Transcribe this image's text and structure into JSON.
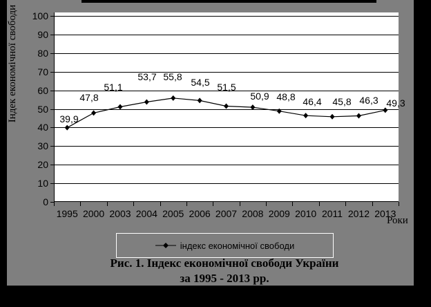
{
  "figure": {
    "caption_line1": "Рис. 1. Індекс економічної свободи України",
    "caption_line2": "за 1995 - 2013 рр."
  },
  "chart_data": {
    "type": "line",
    "title": "",
    "categories": [
      "1995",
      "2000",
      "2003",
      "2004",
      "2005",
      "2006",
      "2007",
      "2008",
      "2009",
      "2010",
      "2011",
      "2012",
      "2013"
    ],
    "series": [
      {
        "name": "індекс економічної свободи",
        "values": [
          39.9,
          47.8,
          51.1,
          53.7,
          55.8,
          54.5,
          51.5,
          50.9,
          48.8,
          46.4,
          45.8,
          46.3,
          49.3
        ],
        "point_labels": [
          "39,9",
          "47,8",
          "51,1",
          "53,7",
          "55,8",
          "54,5",
          "51,5",
          "50,9",
          "48,8",
          "46,4",
          "45,8",
          "46,3",
          "49,3"
        ],
        "marker": "diamond",
        "color": "#000000"
      }
    ],
    "xlabel": "Роки",
    "ylabel": "Індек економічної свободи",
    "ylim": [
      0,
      100
    ],
    "ytick_step": 10,
    "yticks": [
      100,
      90,
      80,
      70,
      60,
      50,
      40,
      30,
      20,
      10,
      0
    ],
    "grid": true,
    "legend": {
      "entries": [
        "індекс економічної свободи"
      ],
      "position": "bottom"
    }
  },
  "colors": {
    "canvas_border": "#000000",
    "chart_background": "#7f7f7f",
    "plot_background": "#ffffff",
    "line_and_text": "#000000",
    "legend_border": "#ffffff"
  }
}
